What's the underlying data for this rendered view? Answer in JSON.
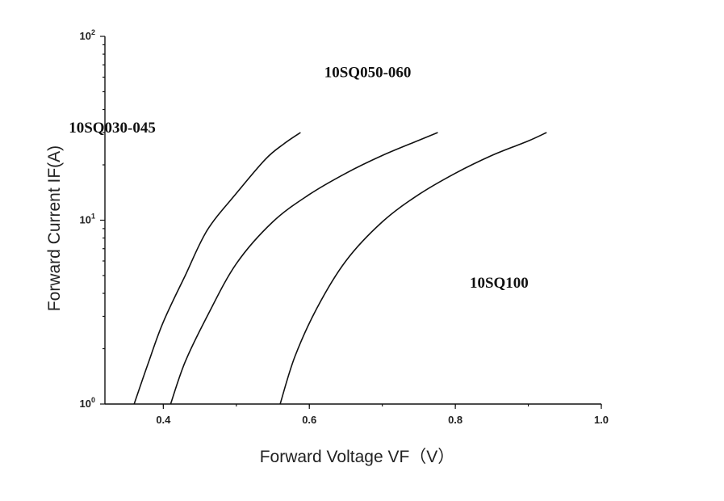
{
  "chart_data": {
    "type": "line",
    "title": "",
    "xlabel": "Forward Voltage VF（V）",
    "ylabel": "Forward Current IF(A)",
    "xlim": [
      0.32,
      1.0
    ],
    "ylim": [
      1,
      100
    ],
    "yscale": "log",
    "grid": false,
    "x_ticks": [
      {
        "value": 0.4,
        "label": "0.4"
      },
      {
        "value": 0.6,
        "label": "0.6"
      },
      {
        "value": 0.8,
        "label": "0.8"
      },
      {
        "value": 1.0,
        "label": "1.0"
      }
    ],
    "y_ticks": [
      {
        "value": 1,
        "base": "10",
        "exp": "0"
      },
      {
        "value": 10,
        "base": "10",
        "exp": "1"
      },
      {
        "value": 100,
        "base": "10",
        "exp": "2"
      }
    ],
    "series": [
      {
        "name": "10SQ030-045",
        "x": [
          0.36,
          0.38,
          0.4,
          0.43,
          0.46,
          0.5,
          0.54,
          0.565,
          0.588
        ],
        "y": [
          1.0,
          1.7,
          2.8,
          5.0,
          8.8,
          14.0,
          21.5,
          26.0,
          30.0
        ]
      },
      {
        "name": "10SQ050-060",
        "x": [
          0.41,
          0.43,
          0.46,
          0.5,
          0.55,
          0.6,
          0.65,
          0.7,
          0.75,
          0.776
        ],
        "y": [
          1.0,
          1.7,
          3.0,
          5.8,
          9.8,
          13.8,
          18.0,
          22.5,
          27.2,
          30.0
        ]
      },
      {
        "name": "10SQ100",
        "x": [
          0.56,
          0.58,
          0.61,
          0.65,
          0.7,
          0.75,
          0.8,
          0.85,
          0.9,
          0.925
        ],
        "y": [
          1.0,
          1.8,
          3.3,
          6.0,
          9.8,
          13.8,
          18.0,
          22.5,
          27.0,
          30.0
        ]
      }
    ],
    "series_labels": [
      {
        "text": "10SQ030-045",
        "x": 0.33,
        "y": 30
      },
      {
        "text": "10SQ050-060",
        "x": 0.68,
        "y": 60
      },
      {
        "text": "10SQ100",
        "x": 0.86,
        "y": 4.3
      }
    ]
  }
}
